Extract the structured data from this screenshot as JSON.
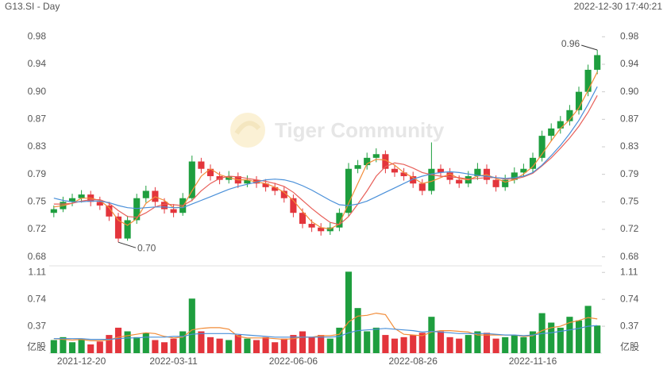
{
  "chart_data": {
    "type": "candlestick",
    "title": "G13.SI - Day",
    "timestamp": "2022-12-30 17:40:21",
    "watermark": "Tiger Community",
    "high_label": "0.96",
    "low_label": "0.70",
    "volume_unit": "亿股",
    "up_color": "#1e9e3e",
    "down_color": "#e3353c",
    "categories": [
      null,
      null,
      null,
      "2021-12-20",
      null,
      null,
      null,
      null,
      null,
      null,
      null,
      null,
      null,
      "2022-03-11",
      null,
      null,
      null,
      null,
      null,
      null,
      null,
      null,
      null,
      null,
      null,
      null,
      "2022-06-06",
      null,
      null,
      null,
      null,
      null,
      null,
      null,
      null,
      null,
      null,
      null,
      null,
      "2022-08-26",
      null,
      null,
      null,
      null,
      null,
      null,
      null,
      null,
      null,
      null,
      null,
      null,
      "2022-11-16",
      null,
      null,
      null,
      null,
      null,
      null,
      null
    ],
    "ohlc": [
      [
        0.74,
        0.75,
        0.734,
        0.745
      ],
      [
        0.745,
        0.762,
        0.741,
        0.755
      ],
      [
        0.755,
        0.766,
        0.749,
        0.76
      ],
      [
        0.76,
        0.771,
        0.754,
        0.765
      ],
      [
        0.765,
        0.77,
        0.749,
        0.755
      ],
      [
        0.755,
        0.762,
        0.744,
        0.75
      ],
      [
        0.75,
        0.755,
        0.729,
        0.735
      ],
      [
        0.735,
        0.74,
        0.7,
        0.705
      ],
      [
        0.705,
        0.736,
        0.702,
        0.73
      ],
      [
        0.73,
        0.766,
        0.725,
        0.76
      ],
      [
        0.76,
        0.777,
        0.754,
        0.77
      ],
      [
        0.77,
        0.775,
        0.749,
        0.755
      ],
      [
        0.755,
        0.76,
        0.739,
        0.745
      ],
      [
        0.745,
        0.752,
        0.734,
        0.74
      ],
      [
        0.74,
        0.767,
        0.736,
        0.76
      ],
      [
        0.76,
        0.818,
        0.756,
        0.81
      ],
      [
        0.81,
        0.815,
        0.794,
        0.8
      ],
      [
        0.8,
        0.806,
        0.784,
        0.79
      ],
      [
        0.79,
        0.796,
        0.779,
        0.785
      ],
      [
        0.785,
        0.797,
        0.78,
        0.79
      ],
      [
        0.79,
        0.795,
        0.774,
        0.78
      ],
      [
        0.78,
        0.791,
        0.775,
        0.785
      ],
      [
        0.785,
        0.79,
        0.774,
        0.78
      ],
      [
        0.78,
        0.786,
        0.769,
        0.775
      ],
      [
        0.775,
        0.781,
        0.764,
        0.77
      ],
      [
        0.77,
        0.776,
        0.754,
        0.76
      ],
      [
        0.76,
        0.765,
        0.734,
        0.74
      ],
      [
        0.74,
        0.746,
        0.719,
        0.725
      ],
      [
        0.725,
        0.731,
        0.714,
        0.72
      ],
      [
        0.72,
        0.726,
        0.709,
        0.715
      ],
      [
        0.715,
        0.727,
        0.71,
        0.72
      ],
      [
        0.72,
        0.746,
        0.715,
        0.74
      ],
      [
        0.74,
        0.808,
        0.735,
        0.8
      ],
      [
        0.8,
        0.812,
        0.794,
        0.805
      ],
      [
        0.805,
        0.822,
        0.799,
        0.815
      ],
      [
        0.815,
        0.828,
        0.809,
        0.82
      ],
      [
        0.82,
        0.825,
        0.794,
        0.8
      ],
      [
        0.8,
        0.806,
        0.789,
        0.795
      ],
      [
        0.795,
        0.801,
        0.784,
        0.79
      ],
      [
        0.79,
        0.796,
        0.774,
        0.78
      ],
      [
        0.78,
        0.786,
        0.764,
        0.77
      ],
      [
        0.77,
        0.836,
        0.765,
        0.8
      ],
      [
        0.8,
        0.806,
        0.789,
        0.795
      ],
      [
        0.795,
        0.801,
        0.779,
        0.785
      ],
      [
        0.785,
        0.791,
        0.774,
        0.78
      ],
      [
        0.78,
        0.797,
        0.775,
        0.79
      ],
      [
        0.79,
        0.808,
        0.785,
        0.8
      ],
      [
        0.8,
        0.806,
        0.779,
        0.785
      ],
      [
        0.785,
        0.791,
        0.769,
        0.775
      ],
      [
        0.775,
        0.792,
        0.77,
        0.785
      ],
      [
        0.785,
        0.802,
        0.78,
        0.795
      ],
      [
        0.795,
        0.807,
        0.79,
        0.8
      ],
      [
        0.8,
        0.822,
        0.795,
        0.815
      ],
      [
        0.815,
        0.852,
        0.81,
        0.845
      ],
      [
        0.845,
        0.862,
        0.838,
        0.855
      ],
      [
        0.855,
        0.872,
        0.848,
        0.865
      ],
      [
        0.865,
        0.887,
        0.859,
        0.88
      ],
      [
        0.88,
        0.912,
        0.874,
        0.905
      ],
      [
        0.905,
        0.942,
        0.899,
        0.935
      ],
      [
        0.935,
        0.962,
        0.929,
        0.955
      ]
    ],
    "ma_series": [
      {
        "color": "#f28c38",
        "values": [
          0.748,
          0.75,
          0.753,
          0.76,
          0.76,
          0.757,
          0.747,
          0.73,
          0.723,
          0.732,
          0.753,
          0.762,
          0.757,
          0.747,
          0.748,
          0.77,
          0.79,
          0.8,
          0.792,
          0.788,
          0.785,
          0.785,
          0.782,
          0.78,
          0.775,
          0.768,
          0.757,
          0.742,
          0.728,
          0.72,
          0.718,
          0.725,
          0.753,
          0.78,
          0.807,
          0.813,
          0.812,
          0.805,
          0.795,
          0.788,
          0.78,
          0.783,
          0.788,
          0.793,
          0.787,
          0.785,
          0.79,
          0.792,
          0.787,
          0.782,
          0.785,
          0.793,
          0.803,
          0.82,
          0.838,
          0.855,
          0.867,
          0.883,
          0.907,
          0.932
        ]
      },
      {
        "color": "#e8605a",
        "values": [
          0.752,
          0.752,
          0.753,
          0.756,
          0.758,
          0.758,
          0.753,
          0.743,
          0.735,
          0.734,
          0.74,
          0.748,
          0.752,
          0.751,
          0.75,
          0.757,
          0.77,
          0.78,
          0.787,
          0.79,
          0.789,
          0.787,
          0.785,
          0.783,
          0.78,
          0.776,
          0.768,
          0.757,
          0.746,
          0.736,
          0.727,
          0.724,
          0.735,
          0.752,
          0.77,
          0.79,
          0.803,
          0.808,
          0.806,
          0.801,
          0.795,
          0.792,
          0.79,
          0.789,
          0.788,
          0.786,
          0.787,
          0.788,
          0.788,
          0.786,
          0.786,
          0.789,
          0.794,
          0.804,
          0.815,
          0.828,
          0.842,
          0.858,
          0.877,
          0.9
        ]
      },
      {
        "color": "#4a90d9",
        "values": [
          0.76,
          0.757,
          0.755,
          0.755,
          0.756,
          0.756,
          0.754,
          0.75,
          0.747,
          0.746,
          0.747,
          0.748,
          0.748,
          0.747,
          0.747,
          0.752,
          0.757,
          0.762,
          0.767,
          0.772,
          0.776,
          0.779,
          0.782,
          0.785,
          0.786,
          0.785,
          0.782,
          0.777,
          0.771,
          0.764,
          0.757,
          0.751,
          0.75,
          0.752,
          0.756,
          0.762,
          0.768,
          0.774,
          0.78,
          0.786,
          0.79,
          0.793,
          0.795,
          0.796,
          0.795,
          0.793,
          0.791,
          0.79,
          0.788,
          0.787,
          0.788,
          0.79,
          0.795,
          0.805,
          0.818,
          0.832,
          0.848,
          0.866,
          0.888,
          0.912
        ]
      }
    ],
    "volume": [
      0.18,
      0.22,
      0.15,
      0.2,
      0.12,
      0.16,
      0.25,
      0.35,
      0.3,
      0.22,
      0.28,
      0.18,
      0.15,
      0.2,
      0.3,
      0.75,
      0.3,
      0.22,
      0.2,
      0.18,
      0.25,
      0.2,
      0.18,
      0.22,
      0.15,
      0.2,
      0.25,
      0.3,
      0.22,
      0.25,
      0.2,
      0.35,
      1.12,
      0.62,
      0.3,
      0.35,
      0.25,
      0.2,
      0.22,
      0.25,
      0.28,
      0.5,
      0.3,
      0.22,
      0.2,
      0.25,
      0.3,
      0.28,
      0.2,
      0.22,
      0.25,
      0.22,
      0.3,
      0.55,
      0.42,
      0.35,
      0.5,
      0.45,
      0.65,
      0.38
    ],
    "volume_ma_series": [
      {
        "color": "#f28c38",
        "values": [
          0.2,
          0.19,
          0.18,
          0.19,
          0.17,
          0.17,
          0.18,
          0.22,
          0.24,
          0.26,
          0.28,
          0.27,
          0.23,
          0.21,
          0.22,
          0.32,
          0.34,
          0.35,
          0.35,
          0.33,
          0.23,
          0.21,
          0.21,
          0.21,
          0.2,
          0.19,
          0.2,
          0.22,
          0.22,
          0.24,
          0.24,
          0.26,
          0.43,
          0.51,
          0.52,
          0.55,
          0.53,
          0.34,
          0.26,
          0.25,
          0.24,
          0.29,
          0.31,
          0.31,
          0.3,
          0.29,
          0.25,
          0.25,
          0.25,
          0.25,
          0.25,
          0.23,
          0.24,
          0.31,
          0.35,
          0.37,
          0.42,
          0.45,
          0.49,
          0.47
        ]
      },
      {
        "color": "#4a90d9",
        "values": [
          0.2,
          0.2,
          0.2,
          0.2,
          0.19,
          0.19,
          0.19,
          0.2,
          0.21,
          0.21,
          0.22,
          0.22,
          0.22,
          0.23,
          0.23,
          0.26,
          0.27,
          0.27,
          0.27,
          0.27,
          0.26,
          0.25,
          0.24,
          0.23,
          0.22,
          0.22,
          0.22,
          0.22,
          0.22,
          0.22,
          0.22,
          0.23,
          0.28,
          0.31,
          0.32,
          0.33,
          0.34,
          0.33,
          0.32,
          0.31,
          0.29,
          0.3,
          0.29,
          0.28,
          0.27,
          0.27,
          0.27,
          0.27,
          0.26,
          0.25,
          0.25,
          0.24,
          0.25,
          0.27,
          0.28,
          0.3,
          0.32,
          0.34,
          0.37,
          0.38
        ]
      }
    ],
    "ylim": [
      0.671,
      0.989
    ],
    "yticks": [
      0.68,
      {
        "value": 0.7175,
        "label": "0.72"
      },
      {
        "value": 0.755,
        "label": "0.75"
      },
      {
        "value": 0.7925,
        "label": "0.79"
      },
      0.83,
      {
        "value": 0.8675,
        "label": "0.87"
      },
      {
        "value": 0.905,
        "label": "0.90"
      },
      {
        "value": 0.9425,
        "label": "0.94"
      },
      0.98
    ],
    "volume_ylim": [
      0,
      1.2
    ],
    "volume_yticks": [
      0.37,
      0.74,
      1.11
    ],
    "grid": false
  }
}
